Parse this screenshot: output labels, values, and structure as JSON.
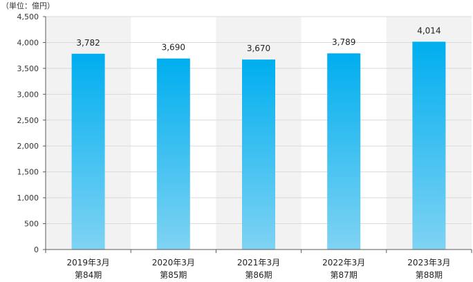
{
  "chart_data": {
    "type": "bar",
    "unit_label": "（単位：億円）",
    "categories": [
      [
        "2019年3月",
        "第84期"
      ],
      [
        "2020年3月",
        "第85期"
      ],
      [
        "2021年3月",
        "第86期"
      ],
      [
        "2022年3月",
        "第87期"
      ],
      [
        "2023年3月",
        "第88期"
      ]
    ],
    "values": [
      3782,
      3690,
      3670,
      3789,
      4014
    ],
    "value_labels": [
      "3,782",
      "3,690",
      "3,670",
      "3,789",
      "4,014"
    ],
    "ylim": [
      0,
      4500
    ],
    "yticks": [
      0,
      500,
      1000,
      1500,
      2000,
      2500,
      3000,
      3500,
      4000,
      4500
    ],
    "ytick_labels": [
      "0",
      "500",
      "1,000",
      "1,500",
      "2,000",
      "2,500",
      "3,000",
      "3,500",
      "4,000",
      "4,500"
    ],
    "grid": true,
    "colors": {
      "bar_top": "#00aeef",
      "bar_bottom": "#7fd3f3",
      "band": "#f2f2f2",
      "grid": "#d9d9d9",
      "axis": "#595959"
    }
  }
}
